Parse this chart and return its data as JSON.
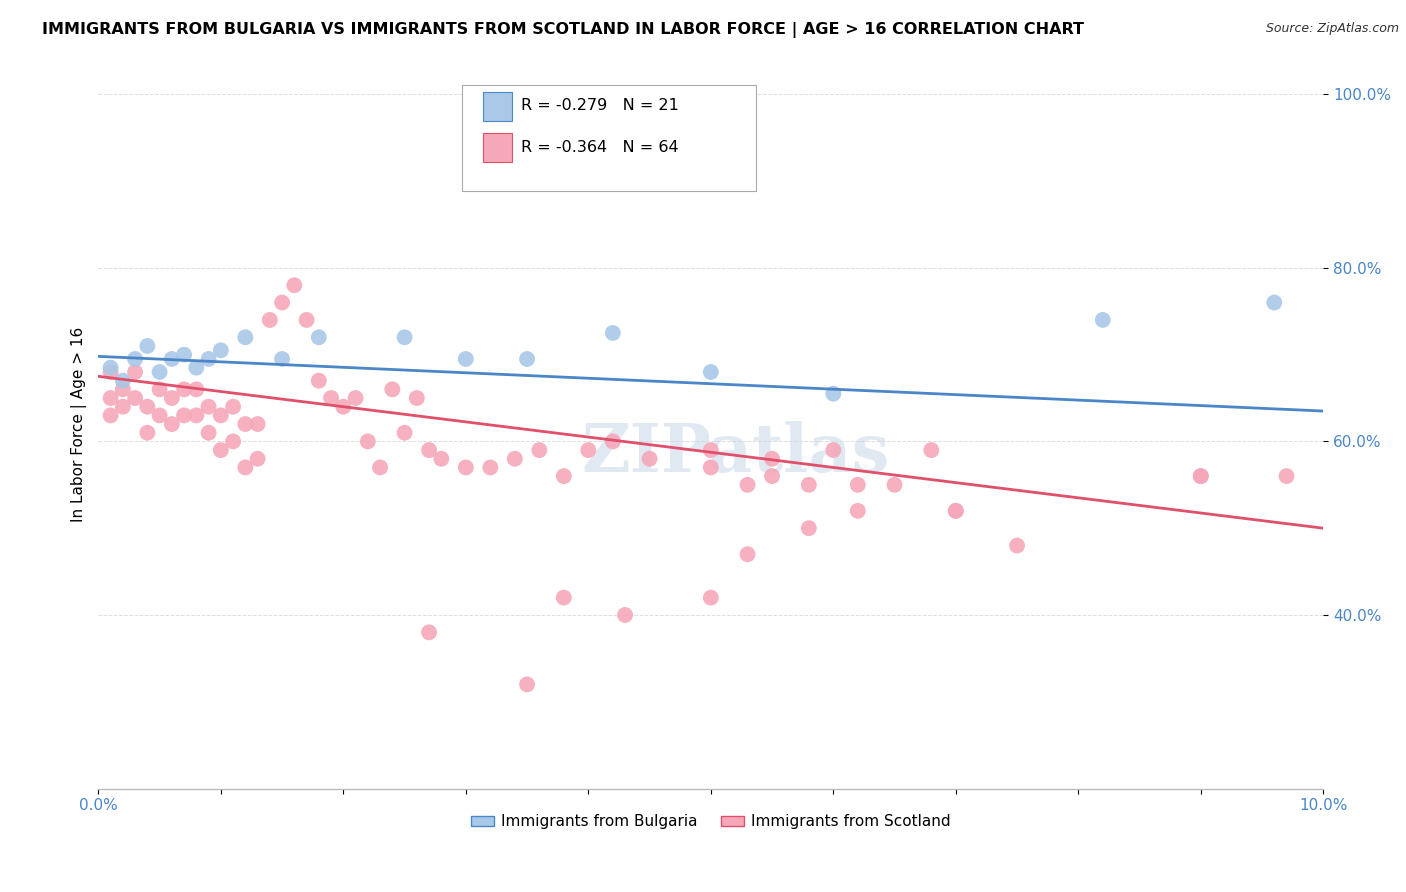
{
  "title": "IMMIGRANTS FROM BULGARIA VS IMMIGRANTS FROM SCOTLAND IN LABOR FORCE | AGE > 16 CORRELATION CHART",
  "source": "Source: ZipAtlas.com",
  "ylabel": "In Labor Force | Age > 16",
  "xlim": [
    0.0,
    0.1
  ],
  "ylim": [
    0.2,
    1.04
  ],
  "yticks": [
    0.4,
    0.6,
    0.8,
    1.0
  ],
  "ytick_labels": [
    "40.0%",
    "60.0%",
    "80.0%",
    "100.0%"
  ],
  "xticks": [
    0.0,
    0.01,
    0.02,
    0.03,
    0.04,
    0.05,
    0.06,
    0.07,
    0.08,
    0.09,
    0.1
  ],
  "xtick_labels": [
    "0.0%",
    "",
    "",
    "",
    "",
    "",
    "",
    "",
    "",
    "",
    "10.0%"
  ],
  "bulgaria_color": "#aac8e8",
  "scotland_color": "#f5a8ba",
  "bulgaria_line_color": "#4a86c8",
  "scotland_line_color": "#e0506a",
  "legend_r_bulgaria": "-0.279",
  "legend_n_bulgaria": "21",
  "legend_r_scotland": "-0.364",
  "legend_n_scotland": "64",
  "watermark": "ZIPatlas",
  "bulgaria_x": [
    0.001,
    0.002,
    0.003,
    0.004,
    0.005,
    0.006,
    0.007,
    0.008,
    0.009,
    0.01,
    0.012,
    0.015,
    0.018,
    0.025,
    0.03,
    0.035,
    0.042,
    0.05,
    0.06,
    0.082,
    0.096
  ],
  "bulgaria_y": [
    0.685,
    0.67,
    0.695,
    0.71,
    0.68,
    0.695,
    0.7,
    0.685,
    0.695,
    0.705,
    0.72,
    0.695,
    0.72,
    0.72,
    0.695,
    0.695,
    0.725,
    0.68,
    0.655,
    0.74,
    0.76
  ],
  "scotland_x": [
    0.001,
    0.001,
    0.001,
    0.002,
    0.002,
    0.003,
    0.003,
    0.004,
    0.004,
    0.005,
    0.005,
    0.006,
    0.006,
    0.007,
    0.007,
    0.008,
    0.008,
    0.009,
    0.009,
    0.01,
    0.01,
    0.011,
    0.011,
    0.012,
    0.012,
    0.013,
    0.013,
    0.014,
    0.015,
    0.016,
    0.017,
    0.018,
    0.019,
    0.02,
    0.021,
    0.022,
    0.023,
    0.024,
    0.025,
    0.026,
    0.027,
    0.028,
    0.03,
    0.032,
    0.034,
    0.036,
    0.038,
    0.04,
    0.042,
    0.045,
    0.05,
    0.05,
    0.053,
    0.055,
    0.055,
    0.058,
    0.06,
    0.062,
    0.065,
    0.068,
    0.07,
    0.075,
    0.09,
    0.097
  ],
  "scotland_y": [
    0.68,
    0.65,
    0.63,
    0.66,
    0.64,
    0.68,
    0.65,
    0.64,
    0.61,
    0.66,
    0.63,
    0.65,
    0.62,
    0.66,
    0.63,
    0.66,
    0.63,
    0.64,
    0.61,
    0.63,
    0.59,
    0.64,
    0.6,
    0.62,
    0.57,
    0.62,
    0.58,
    0.74,
    0.76,
    0.78,
    0.74,
    0.67,
    0.65,
    0.64,
    0.65,
    0.6,
    0.57,
    0.66,
    0.61,
    0.65,
    0.59,
    0.58,
    0.57,
    0.57,
    0.58,
    0.59,
    0.56,
    0.59,
    0.6,
    0.58,
    0.59,
    0.57,
    0.55,
    0.58,
    0.56,
    0.55,
    0.59,
    0.55,
    0.55,
    0.59,
    0.52,
    0.48,
    0.56,
    0.56
  ],
  "scotland_outlier_x": [
    0.027,
    0.035,
    0.038,
    0.043,
    0.05,
    0.053,
    0.058,
    0.062,
    0.07,
    0.09
  ],
  "scotland_outlier_y": [
    0.38,
    0.32,
    0.42,
    0.4,
    0.42,
    0.47,
    0.5,
    0.52,
    0.52,
    0.56
  ],
  "background_color": "#ffffff",
  "grid_color": "#dddddd"
}
